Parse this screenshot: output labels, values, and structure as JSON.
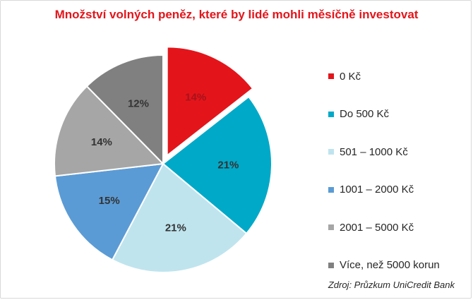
{
  "title": "Množství volných peněz, které by lidé mohli měsíčně investovat",
  "source": "Zdroj: Průzkum UniCredit Bank",
  "chart_data": {
    "type": "pie",
    "title": "Množství volných peněz, které by lidé mohli měsíčně investovat",
    "exploded_slice": "0 Kč",
    "legend_position": "right",
    "slices": [
      {
        "label": "0 Kč",
        "value": 14,
        "display": "14%",
        "color": "#e3151b",
        "label_color": "#a8121a"
      },
      {
        "label": "Do 500 Kč",
        "value": 21,
        "display": "21%",
        "color": "#00a9c8",
        "label_color": "#333333"
      },
      {
        "label": "501 – 1000 Kč",
        "value": 21,
        "display": "21%",
        "color": "#bfe4ee",
        "label_color": "#333333"
      },
      {
        "label": "1001 – 2000 Kč",
        "value": 15,
        "display": "15%",
        "color": "#5b9bd5",
        "label_color": "#333333"
      },
      {
        "label": "2001 – 5000 Kč",
        "value": 14,
        "display": "14%",
        "color": "#a6a6a6",
        "label_color": "#333333"
      },
      {
        "label": "Více, než 5000 korun",
        "value": 12,
        "display": "12%",
        "color": "#808080",
        "label_color": "#333333"
      }
    ]
  }
}
